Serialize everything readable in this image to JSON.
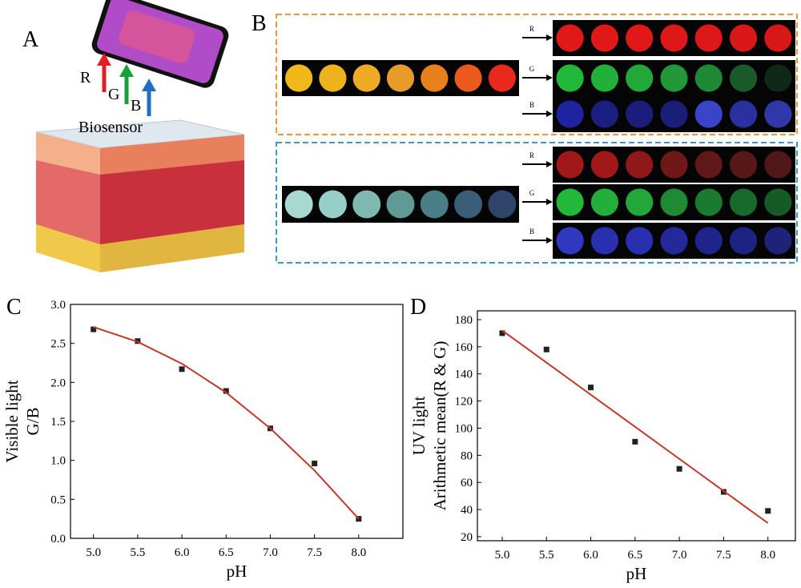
{
  "panel_a": {
    "label": "A",
    "arrows": [
      "R",
      "G",
      "B"
    ],
    "sensor": "Biosensor"
  },
  "panel_b": {
    "label": "B",
    "channels": [
      "R",
      "G",
      "B"
    ]
  },
  "chart_data": [
    {
      "type": "scatter",
      "panel": "C",
      "x_label": "pH",
      "y_label": [
        "Visible light",
        "G/B"
      ],
      "x": [
        5.0,
        5.5,
        6.0,
        6.5,
        7.0,
        7.5,
        8.0
      ],
      "values": [
        2.68,
        2.53,
        2.17,
        1.89,
        1.41,
        0.96,
        0.25
      ],
      "color": "#222222",
      "fit": {
        "x": [
          5.0,
          5.5,
          6.0,
          6.5,
          7.0,
          7.5,
          8.0
        ],
        "values": [
          2.71,
          2.52,
          2.24,
          1.87,
          1.41,
          0.87,
          0.25
        ],
        "color": "#c0392b"
      },
      "xlim": [
        4.74,
        8.5
      ],
      "ylim": [
        0,
        3
      ],
      "xticks": [
        {
          "value": 5,
          "label": "5.0"
        },
        5.5,
        {
          "value": 6,
          "label": "6.0"
        },
        6.5,
        {
          "value": 7,
          "label": "7.0"
        },
        7.5,
        {
          "value": 8,
          "label": "8.0"
        }
      ],
      "yticks": [
        {
          "value": 0,
          "label": "0.0"
        },
        0.5,
        {
          "value": 1,
          "label": "1.0"
        },
        1.5,
        {
          "value": 2,
          "label": "2.0"
        },
        2.5,
        {
          "value": 3,
          "label": "3.0"
        }
      ]
    },
    {
      "type": "scatter",
      "panel": "D",
      "x_label": "pH",
      "y_label": [
        "UV light",
        "Arithmetic mean(R & G)"
      ],
      "x": [
        5.0,
        5.5,
        6.0,
        6.5,
        7.0,
        7.5,
        8.0
      ],
      "values": [
        170,
        158,
        130,
        90,
        70,
        53,
        39
      ],
      "color": "#222222",
      "fit": {
        "x": [
          5.0,
          8.0
        ],
        "values": [
          172,
          30
        ],
        "color": "#c0392b"
      },
      "xlim": [
        4.72,
        8.31
      ],
      "ylim": [
        17,
        186.5
      ],
      "xticks": [
        {
          "value": 5,
          "label": "5.0"
        },
        5.5,
        {
          "value": 6,
          "label": "6.0"
        },
        6.5,
        {
          "value": 7,
          "label": "7.0"
        },
        7.5,
        {
          "value": 8,
          "label": "8.0"
        }
      ],
      "yticks": [
        20,
        40,
        60,
        80,
        100,
        120,
        140,
        160,
        180
      ]
    }
  ]
}
